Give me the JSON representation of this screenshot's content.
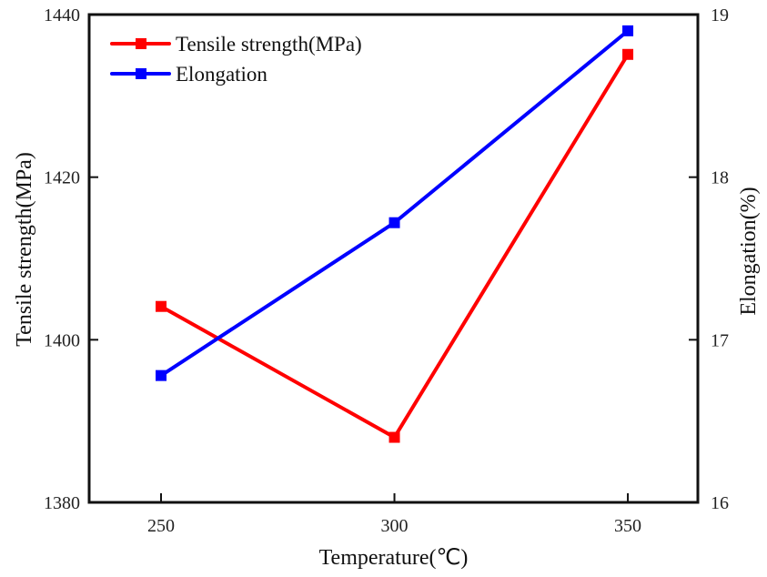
{
  "chart_data": {
    "type": "line",
    "title": "",
    "xlabel": "Temperature(℃)",
    "ylabel": "Tensile strength(MPa)",
    "y2label": "Elongation(%)",
    "x": [
      250,
      300,
      350
    ],
    "xlim": [
      234.6,
      365
    ],
    "xticks": [
      250,
      300,
      350
    ],
    "ylim": [
      1380,
      1440
    ],
    "yticks": [
      1380,
      1400,
      1420,
      1440
    ],
    "y2lim": [
      16,
      19
    ],
    "y2ticks": [
      16,
      17,
      18,
      19
    ],
    "grid": false,
    "legend_position": "top-left",
    "series": [
      {
        "name": "Tensile strength(MPa)",
        "axis": "left",
        "color": "#ff0000",
        "marker": "square",
        "values": [
          1404.1,
          1388.0,
          1435.1
        ]
      },
      {
        "name": "Elongation",
        "axis": "right",
        "color": "#0000ff",
        "marker": "square",
        "values": [
          16.78,
          17.72,
          18.9
        ]
      }
    ]
  }
}
